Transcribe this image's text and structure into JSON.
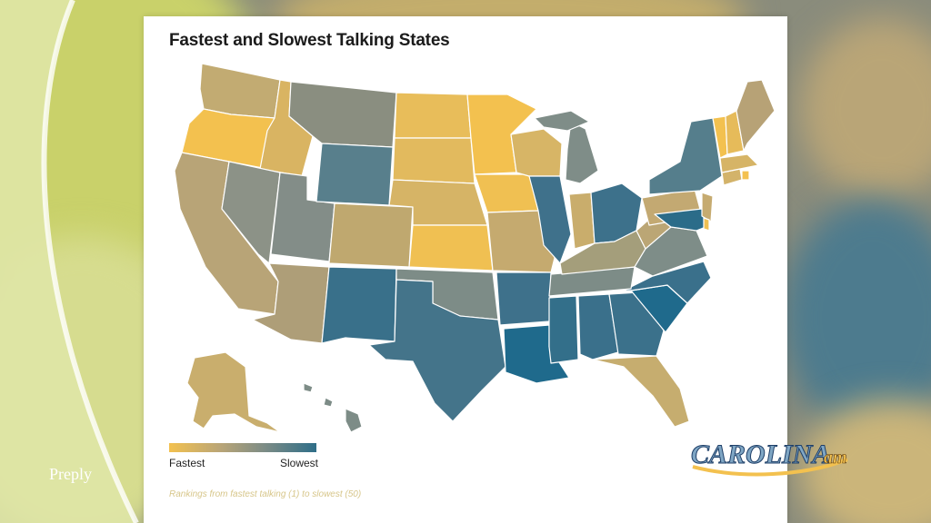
{
  "title": "Fastest and Slowest Talking States",
  "legend": {
    "left": "Fastest",
    "right": "Slowest"
  },
  "note": "Rankings from fastest talking (1) to slowest (50)",
  "watermark": "Preply",
  "logo": {
    "main": "CAROLINA",
    "suffix": "am"
  },
  "colors": {
    "fastest": "#f3c14f",
    "medium": "#b9a577",
    "gray": "#7c8c86",
    "slowest": "#2f6e88"
  }
}
